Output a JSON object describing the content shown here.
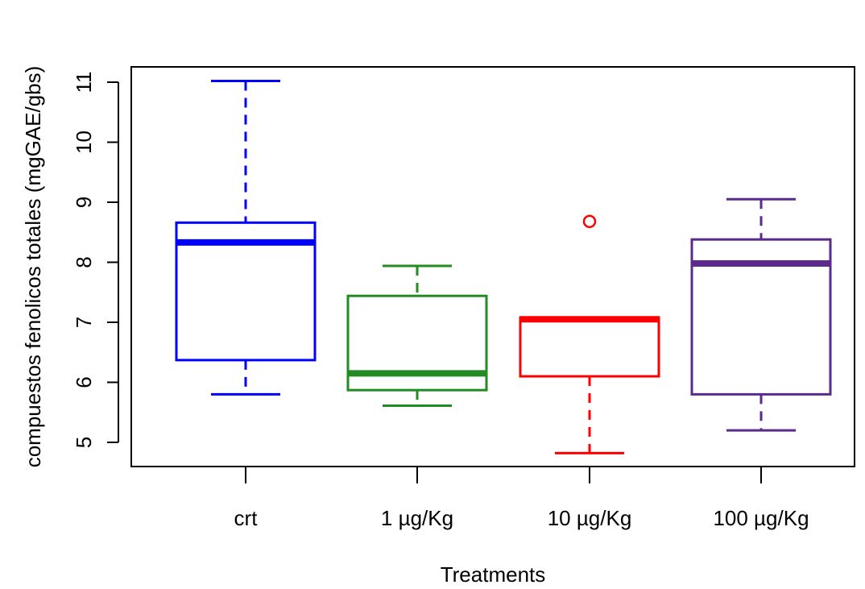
{
  "chart_data": {
    "type": "box",
    "xlabel": "Treatments",
    "ylabel": "compuestos fenolicos totales (mgGAE/gbs)",
    "ylim": [
      4.6,
      11.3
    ],
    "yticks": [
      5,
      6,
      7,
      8,
      9,
      10,
      11
    ],
    "grid": false,
    "categories": [
      "crt",
      "1 µg/Kg",
      "10 µg/Kg",
      "100 µg/Kg"
    ],
    "boxes": [
      {
        "category": "crt",
        "color": "#0000ff",
        "whisker_low": 5.8,
        "q1": 6.37,
        "median": 8.33,
        "q3": 8.66,
        "whisker_high": 11.02,
        "outliers": []
      },
      {
        "category": "1 µg/Kg",
        "color": "#228b22",
        "whisker_low": 5.61,
        "q1": 5.87,
        "median": 6.15,
        "q3": 7.44,
        "whisker_high": 7.94,
        "outliers": []
      },
      {
        "category": "10 µg/Kg",
        "color": "#ff0000",
        "whisker_low": 4.82,
        "q1": 6.1,
        "median": 7.05,
        "q3": 7.08,
        "whisker_high": 7.08,
        "outliers": [
          8.68
        ]
      },
      {
        "category": "100 µg/Kg",
        "color": "#5b2a8c",
        "whisker_low": 5.2,
        "q1": 5.8,
        "median": 7.98,
        "q3": 8.38,
        "whisker_high": 9.05,
        "outliers": []
      }
    ]
  }
}
